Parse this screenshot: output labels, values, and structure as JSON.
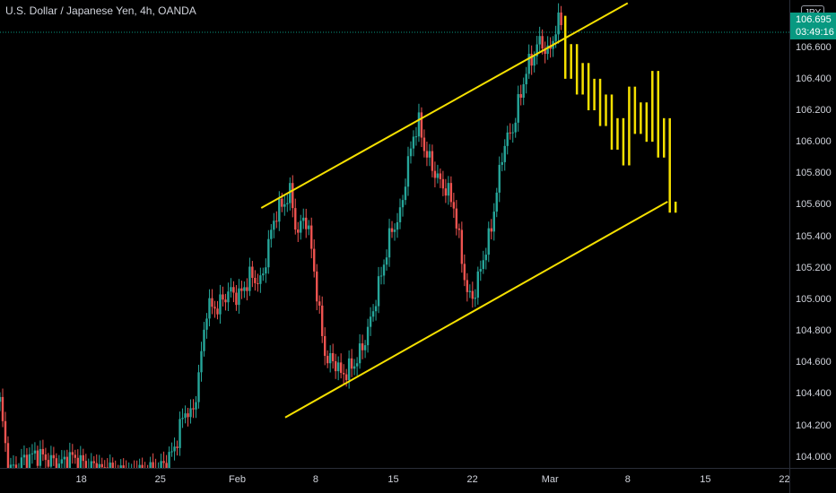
{
  "header": {
    "title": "U.S. Dollar / Japanese Yen, 4h, OANDA"
  },
  "price_axis": {
    "currency": "JPY",
    "last_price": "106.695",
    "countdown": "03:49:16",
    "ticks": [
      "104.000",
      "104.200",
      "104.400",
      "104.600",
      "104.800",
      "105.000",
      "105.200",
      "105.400",
      "105.600",
      "105.800",
      "106.000",
      "106.200",
      "106.400",
      "106.600"
    ]
  },
  "time_axis": {
    "ticks": [
      "18",
      "25",
      "Feb",
      "8",
      "15",
      "22",
      "Mar",
      "8",
      "15",
      "22"
    ]
  },
  "colors": {
    "up": "#26a69a",
    "down": "#ef5350",
    "projection": "#f5e000",
    "channel": "#f5e000",
    "last_price_line": "#089981"
  },
  "chart_data": {
    "type": "candlestick",
    "title": "U.S. Dollar / Japanese Yen, 4h, OANDA",
    "ylim": [
      103.93,
      106.9
    ],
    "yticks": [
      104.0,
      104.2,
      104.4,
      104.6,
      104.8,
      105.0,
      105.2,
      105.4,
      105.6,
      105.8,
      106.0,
      106.2,
      106.4,
      106.6
    ],
    "xticks": [
      {
        "label": "18",
        "x": 0.112
      },
      {
        "label": "25",
        "x": 0.221
      },
      {
        "label": "Feb",
        "x": 0.327
      },
      {
        "label": "8",
        "x": 0.435
      },
      {
        "label": "15",
        "x": 0.542
      },
      {
        "label": "22",
        "x": 0.651
      },
      {
        "label": "Mar",
        "x": 0.758
      },
      {
        "label": "8",
        "x": 0.865
      },
      {
        "label": "15",
        "x": 0.972
      },
      {
        "label": "22",
        "x": 1.081
      }
    ],
    "price_anchors": [
      [
        0.0,
        104.35
      ],
      [
        0.012,
        103.9
      ],
      [
        0.03,
        103.97
      ],
      [
        0.05,
        104.02
      ],
      [
        0.08,
        103.95
      ],
      [
        0.1,
        104.0
      ],
      [
        0.112,
        103.96
      ],
      [
        0.14,
        103.92
      ],
      [
        0.17,
        103.9
      ],
      [
        0.2,
        103.9
      ],
      [
        0.228,
        103.95
      ],
      [
        0.24,
        104.05
      ],
      [
        0.255,
        104.3
      ],
      [
        0.265,
        104.25
      ],
      [
        0.275,
        104.55
      ],
      [
        0.285,
        104.95
      ],
      [
        0.3,
        104.95
      ],
      [
        0.315,
        105.05
      ],
      [
        0.33,
        105.02
      ],
      [
        0.345,
        105.15
      ],
      [
        0.36,
        105.1
      ],
      [
        0.37,
        105.35
      ],
      [
        0.38,
        105.55
      ],
      [
        0.39,
        105.6
      ],
      [
        0.4,
        105.68
      ],
      [
        0.41,
        105.4
      ],
      [
        0.42,
        105.55
      ],
      [
        0.43,
        105.3
      ],
      [
        0.44,
        104.9
      ],
      [
        0.45,
        104.6
      ],
      [
        0.46,
        104.62
      ],
      [
        0.47,
        104.52
      ],
      [
        0.48,
        104.55
      ],
      [
        0.49,
        104.6
      ],
      [
        0.5,
        104.7
      ],
      [
        0.51,
        104.85
      ],
      [
        0.52,
        105.05
      ],
      [
        0.53,
        105.25
      ],
      [
        0.54,
        105.45
      ],
      [
        0.55,
        105.5
      ],
      [
        0.56,
        105.8
      ],
      [
        0.57,
        106.05
      ],
      [
        0.578,
        106.12
      ],
      [
        0.585,
        105.95
      ],
      [
        0.595,
        105.85
      ],
      [
        0.605,
        105.75
      ],
      [
        0.615,
        105.7
      ],
      [
        0.625,
        105.6
      ],
      [
        0.635,
        105.3
      ],
      [
        0.645,
        105.0
      ],
      [
        0.655,
        105.05
      ],
      [
        0.665,
        105.25
      ],
      [
        0.675,
        105.4
      ],
      [
        0.685,
        105.7
      ],
      [
        0.695,
        106.0
      ],
      [
        0.705,
        106.05
      ],
      [
        0.715,
        106.25
      ],
      [
        0.725,
        106.45
      ],
      [
        0.735,
        106.55
      ],
      [
        0.745,
        106.65
      ],
      [
        0.755,
        106.55
      ],
      [
        0.765,
        106.7
      ],
      [
        0.775,
        106.8
      ]
    ],
    "projection": [
      {
        "x": 0.779,
        "y": [
          106.8,
          106.4
        ]
      },
      {
        "x": 0.787,
        "y": [
          106.4,
          106.62
        ]
      },
      {
        "x": 0.795,
        "y": [
          106.62,
          106.3
        ]
      },
      {
        "x": 0.803,
        "y": [
          106.3,
          106.5
        ]
      },
      {
        "x": 0.811,
        "y": [
          106.5,
          106.2
        ]
      },
      {
        "x": 0.819,
        "y": [
          106.2,
          106.4
        ]
      },
      {
        "x": 0.827,
        "y": [
          106.4,
          106.1
        ]
      },
      {
        "x": 0.835,
        "y": [
          106.1,
          106.3
        ]
      },
      {
        "x": 0.843,
        "y": [
          106.3,
          105.95
        ]
      },
      {
        "x": 0.851,
        "y": [
          105.95,
          106.15
        ]
      },
      {
        "x": 0.859,
        "y": [
          106.15,
          105.85
        ]
      },
      {
        "x": 0.867,
        "y": [
          105.85,
          106.35
        ]
      },
      {
        "x": 0.875,
        "y": [
          106.35,
          106.05
        ]
      },
      {
        "x": 0.883,
        "y": [
          106.05,
          106.25
        ]
      },
      {
        "x": 0.891,
        "y": [
          106.25,
          106.0
        ]
      },
      {
        "x": 0.899,
        "y": [
          106.0,
          106.45
        ]
      },
      {
        "x": 0.907,
        "y": [
          106.45,
          105.9
        ]
      },
      {
        "x": 0.915,
        "y": [
          105.9,
          106.15
        ]
      },
      {
        "x": 0.923,
        "y": [
          106.15,
          105.55
        ]
      },
      {
        "x": 0.931,
        "y": [
          105.55,
          105.62
        ]
      }
    ],
    "channel_upper": [
      [
        0.36,
        105.58
      ],
      [
        0.865,
        106.88
      ]
    ],
    "channel_lower": [
      [
        0.393,
        104.25
      ],
      [
        0.92,
        105.62
      ]
    ],
    "last_price": 106.695
  }
}
